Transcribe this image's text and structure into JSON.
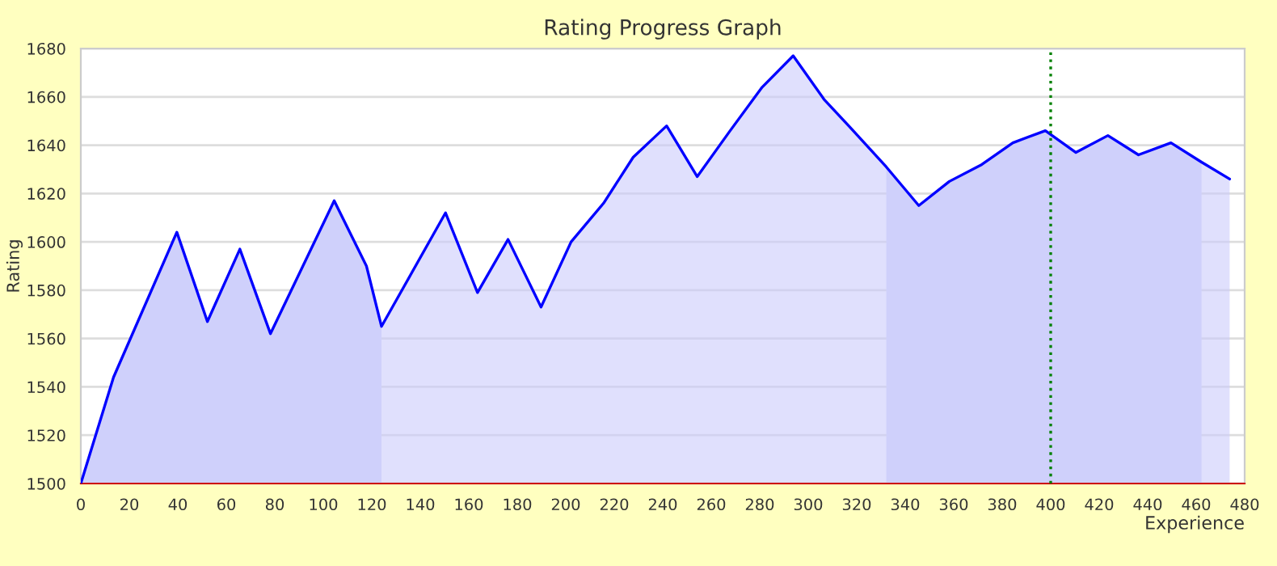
{
  "chart_data": {
    "type": "area",
    "title": "Rating Progress Graph",
    "xlabel": "Experience",
    "ylabel": "Rating",
    "series": [
      {
        "color": "#0000ff",
        "x": [
          0,
          13.5,
          39.6,
          52.2,
          65.6,
          78.2,
          104.5,
          117.8,
          124,
          150.4,
          163.6,
          176.2,
          189.8,
          202.2,
          215.6,
          227.8,
          241.6,
          254.2,
          267.8,
          281,
          293.8,
          306.5,
          316.7,
          332.2,
          345.6,
          358.2,
          371.6,
          384.4,
          397.8,
          410.4,
          423.6,
          436.2,
          449.6,
          462.2,
          473.8
        ],
        "values": [
          1500,
          1544,
          1604,
          1567,
          1597,
          1562,
          1617,
          1590,
          1565,
          1612,
          1579,
          1601,
          1573,
          1600,
          1616,
          1635,
          1648,
          1627,
          1646,
          1664,
          1677,
          1659,
          1648,
          1631,
          1615,
          1625,
          1632,
          1641,
          1646,
          1637,
          1644,
          1636,
          1641,
          1633,
          1626
        ]
      }
    ],
    "bands": [
      {
        "axis": "x",
        "from": 0,
        "to": 124,
        "color": "#d4d7fb"
      },
      {
        "axis": "x",
        "from": 332.2,
        "to": 462.2,
        "color": "#d4d7fb"
      }
    ],
    "ref_lines": [
      {
        "axis": "x",
        "value": 400,
        "color": "#008000",
        "line_style": "dotted"
      }
    ],
    "xlim": [
      0,
      480
    ],
    "ylim": [
      1500,
      1680
    ],
    "xticks": [
      0,
      20,
      40,
      60,
      80,
      100,
      120,
      140,
      160,
      180,
      200,
      220,
      240,
      260,
      280,
      300,
      320,
      340,
      360,
      380,
      400,
      420,
      440,
      460,
      480
    ],
    "yticks": [
      1500,
      1520,
      1540,
      1560,
      1580,
      1600,
      1620,
      1640,
      1660,
      1680
    ],
    "grid": "y",
    "marker": "none",
    "line_style": "solid"
  }
}
